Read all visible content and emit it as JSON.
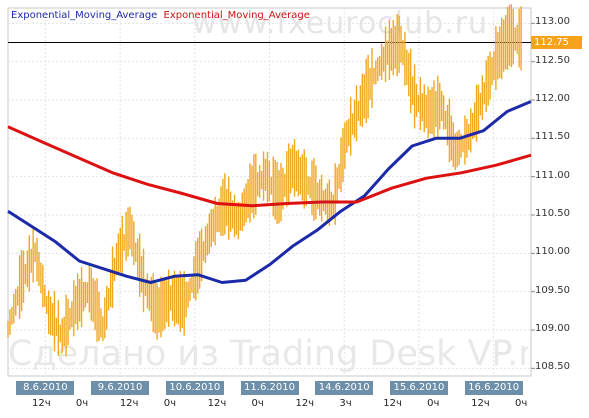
{
  "legend": {
    "series1": "Exponential_Moving_Average",
    "series2": "Exponential_Moving_Average"
  },
  "watermark_top": "www.fxeuroclub.ru",
  "watermark_bottom": "Сделано из Trading Desk VP.ru",
  "colors": {
    "price": "#f0a820",
    "ema_fast": "#1c2aa8",
    "ema_slow": "#dd1111",
    "date_bg": "#6e8fa9",
    "price_tag": "#f7a21b"
  },
  "current_price": "112.75",
  "chart_data": {
    "type": "line",
    "x_labels": [
      "8.6.2010",
      "9.6.2010",
      "10.6.2010",
      "11.6.2010",
      "14.6.2010",
      "15.6.2010",
      "16.6.2010"
    ],
    "hour_labels": [
      "12ч",
      "0ч",
      "12ч",
      "0ч",
      "12ч",
      "0ч",
      "12ч",
      "3ч",
      "12ч",
      "0ч",
      "12ч",
      "0ч"
    ],
    "y_ticks": [
      "113.00",
      "112.50",
      "112.00",
      "111.50",
      "111.00",
      "110.50",
      "110.00",
      "109.50",
      "109.00",
      "108.50"
    ],
    "ylim": [
      108.4,
      113.2
    ],
    "current_price": 112.75,
    "grid": true,
    "series": [
      {
        "name": "Exponential_Moving_Average",
        "color": "#1c2aa8",
        "values": [
          110.55,
          110.35,
          110.15,
          109.9,
          109.8,
          109.7,
          109.62,
          109.7,
          109.72,
          109.62,
          109.65,
          109.85,
          110.1,
          110.3,
          110.55,
          110.75,
          111.1,
          111.4,
          111.5,
          111.5,
          111.6,
          111.85,
          111.98
        ]
      },
      {
        "name": "Exponential_Moving_Average",
        "color": "#dd1111",
        "values": [
          111.65,
          111.45,
          111.25,
          111.05,
          110.9,
          110.78,
          110.65,
          110.62,
          110.65,
          110.67,
          110.67,
          110.85,
          110.98,
          111.05,
          111.15,
          111.28
        ]
      },
      {
        "name": "price",
        "color": "#f0a820",
        "values": [
          109.0,
          109.6,
          110.0,
          109.2,
          108.9,
          109.3,
          109.5,
          109.0,
          109.9,
          110.3,
          109.6,
          109.2,
          109.4,
          109.3,
          109.8,
          110.3,
          110.6,
          110.4,
          110.8,
          111.0,
          110.7,
          111.1,
          110.9,
          110.7,
          110.6,
          111.5,
          111.9,
          112.3,
          112.6,
          112.7,
          112.0,
          111.8,
          111.9,
          111.3,
          111.5,
          112.0,
          112.5,
          112.8,
          112.75
        ]
      }
    ]
  }
}
